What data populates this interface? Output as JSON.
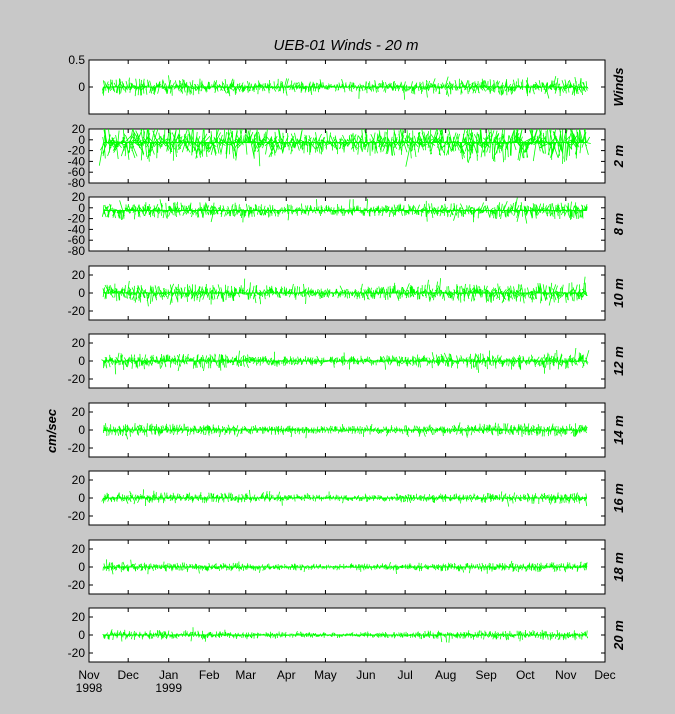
{
  "chart_data": {
    "type": "line",
    "title": "UEB-01   Winds - 20 m",
    "ylabel": "cm/sec",
    "xlim": [
      "1998-11-01",
      "1999-12-01"
    ],
    "x_ticks": [
      {
        "date": "1998-11-01",
        "label": "Nov",
        "year": "1998"
      },
      {
        "date": "1998-12-01",
        "label": "Dec",
        "year": ""
      },
      {
        "date": "1999-01-01",
        "label": "Jan",
        "year": "1999"
      },
      {
        "date": "1999-02-01",
        "label": "Feb",
        "year": ""
      },
      {
        "date": "1999-03-01",
        "label": "Mar",
        "year": ""
      },
      {
        "date": "1999-04-01",
        "label": "Apr",
        "year": ""
      },
      {
        "date": "1999-05-01",
        "label": "May",
        "year": ""
      },
      {
        "date": "1999-06-01",
        "label": "Jun",
        "year": ""
      },
      {
        "date": "1999-07-01",
        "label": "Jul",
        "year": ""
      },
      {
        "date": "1999-08-01",
        "label": "Aug",
        "year": ""
      },
      {
        "date": "1999-09-01",
        "label": "Sep",
        "year": ""
      },
      {
        "date": "1999-10-01",
        "label": "Oct",
        "year": ""
      },
      {
        "date": "1999-11-01",
        "label": "Nov",
        "year": ""
      },
      {
        "date": "1999-12-01",
        "label": "Dec",
        "year": ""
      }
    ],
    "data_range": [
      "1998-11-12",
      "1999-11-17"
    ],
    "series_color": "#00ff00",
    "panels": [
      {
        "name": "Winds",
        "ylim": [
          -0.5,
          0.5
        ],
        "yticks": [
          0.5,
          0
        ],
        "ytick_labels": [
          "0.5",
          "0"
        ],
        "baseline": 0,
        "amp": 0.18
      },
      {
        "name": "2 m",
        "ylim": [
          -80,
          20
        ],
        "yticks": [
          20,
          0,
          -20,
          -40,
          -60,
          -80
        ],
        "ytick_labels": [
          "20",
          "0",
          "-20",
          "-40",
          "-60",
          "-80"
        ],
        "baseline": -5,
        "amp": 40
      },
      {
        "name": "8 m",
        "ylim": [
          -80,
          20
        ],
        "yticks": [
          20,
          0,
          -20,
          -40,
          -60,
          -80
        ],
        "ytick_labels": [
          "20",
          "0",
          "-20",
          "-40",
          "-60",
          "-80"
        ],
        "baseline": -5,
        "amp": 18
      },
      {
        "name": "10 m",
        "ylim": [
          -30,
          30
        ],
        "yticks": [
          20,
          0,
          -20
        ],
        "ytick_labels": [
          "20",
          "0",
          "-20"
        ],
        "baseline": 0,
        "amp": 12
      },
      {
        "name": "12 m",
        "ylim": [
          -30,
          30
        ],
        "yticks": [
          20,
          0,
          -20
        ],
        "ytick_labels": [
          "20",
          "0",
          "-20"
        ],
        "baseline": 0,
        "amp": 10
      },
      {
        "name": "14 m",
        "ylim": [
          -30,
          30
        ],
        "yticks": [
          20,
          0,
          -20
        ],
        "ytick_labels": [
          "20",
          "0",
          "-20"
        ],
        "baseline": 0,
        "amp": 8
      },
      {
        "name": "16 m",
        "ylim": [
          -30,
          30
        ],
        "yticks": [
          20,
          0,
          -20
        ],
        "ytick_labels": [
          "20",
          "0",
          "-20"
        ],
        "baseline": 0,
        "amp": 7
      },
      {
        "name": "18 m",
        "ylim": [
          -30,
          30
        ],
        "yticks": [
          20,
          0,
          -20
        ],
        "ytick_labels": [
          "20",
          "0",
          "-20"
        ],
        "baseline": 0,
        "amp": 6
      },
      {
        "name": "20 m",
        "ylim": [
          -30,
          30
        ],
        "yticks": [
          20,
          0,
          -20
        ],
        "ytick_labels": [
          "20",
          "0",
          "-20"
        ],
        "baseline": 0,
        "amp": 6
      }
    ]
  }
}
